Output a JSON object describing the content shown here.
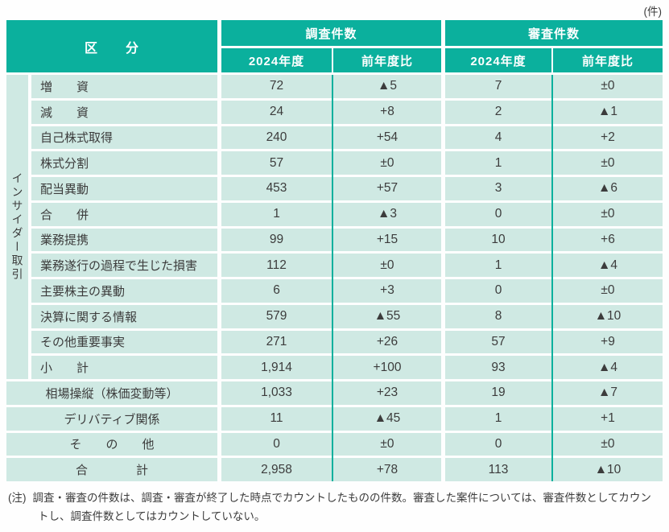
{
  "unit_label": "(件)",
  "colors": {
    "accent_teal": "#0bb09d",
    "cell_bg": "#cfe9e3",
    "header_text": "#ffffff",
    "body_text": "#3c3c3c"
  },
  "header": {
    "category": "区　　分",
    "groups": [
      {
        "label": "調査件数",
        "columns": [
          "2024年度",
          "前年度比"
        ]
      },
      {
        "label": "審査件数",
        "columns": [
          "2024年度",
          "前年度比"
        ]
      }
    ]
  },
  "side_label": "インサイダー取引",
  "table": {
    "rows": [
      {
        "label": "増　　資",
        "values": [
          "72",
          "▲5",
          "7",
          "±0"
        ]
      },
      {
        "label": "減　　資",
        "values": [
          "24",
          "+8",
          "2",
          "▲1"
        ]
      },
      {
        "label": "自己株式取得",
        "values": [
          "240",
          "+54",
          "4",
          "+2"
        ]
      },
      {
        "label": "株式分割",
        "values": [
          "57",
          "±0",
          "1",
          "±0"
        ]
      },
      {
        "label": "配当異動",
        "values": [
          "453",
          "+57",
          "3",
          "▲6"
        ]
      },
      {
        "label": "合　　併",
        "values": [
          "1",
          "▲3",
          "0",
          "±0"
        ]
      },
      {
        "label": "業務提携",
        "values": [
          "99",
          "+15",
          "10",
          "+6"
        ]
      },
      {
        "label": "業務遂行の過程で生じた損害",
        "values": [
          "112",
          "±0",
          "1",
          "▲4"
        ]
      },
      {
        "label": "主要株主の異動",
        "values": [
          "6",
          "+3",
          "0",
          "±0"
        ]
      },
      {
        "label": "決算に関する情報",
        "values": [
          "579",
          "▲55",
          "8",
          "▲10"
        ]
      },
      {
        "label": "その他重要事実",
        "values": [
          "271",
          "+26",
          "57",
          "+9"
        ]
      },
      {
        "label": "小　　計",
        "values": [
          "1,914",
          "+100",
          "93",
          "▲4"
        ]
      },
      {
        "label": "相場操縦（株価変動等）",
        "values": [
          "1,033",
          "+23",
          "19",
          "▲7"
        ]
      },
      {
        "label": "デリバティブ関係",
        "values": [
          "11",
          "▲45",
          "1",
          "+1"
        ]
      },
      {
        "label": "そ　　の　　他",
        "values": [
          "0",
          "±0",
          "0",
          "±0"
        ]
      },
      {
        "label": "合　　　　計",
        "values": [
          "2,958",
          "+78",
          "113",
          "▲10"
        ]
      }
    ]
  },
  "note": {
    "label": "(注)",
    "text": "調査・審査の件数は、調査・審査が終了した時点でカウントしたものの件数。審査した案件については、審査件数としてカウントし、調査件数としてはカウントしていない。"
  }
}
